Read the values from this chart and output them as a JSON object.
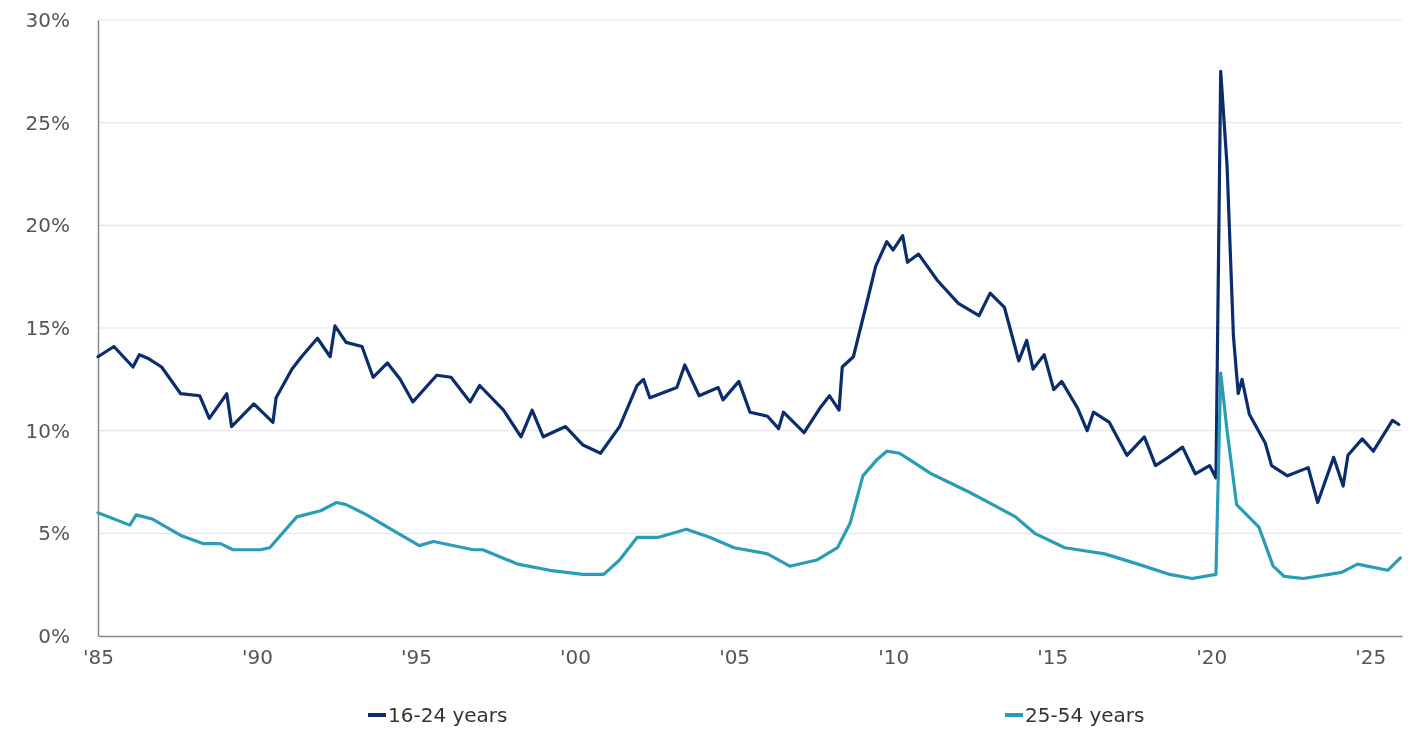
{
  "chart_data": {
    "type": "line",
    "xlim": [
      1985,
      2026
    ],
    "ylim": [
      0,
      30
    ],
    "xticks": [
      {
        "value": 1985,
        "label": "'85"
      },
      {
        "value": 1990,
        "label": "'90"
      },
      {
        "value": 1995,
        "label": "'95"
      },
      {
        "value": 2000,
        "label": "'00"
      },
      {
        "value": 2005,
        "label": "'05"
      },
      {
        "value": 2010,
        "label": "'10"
      },
      {
        "value": 2015,
        "label": "'15"
      },
      {
        "value": 2020,
        "label": "'20"
      },
      {
        "value": 2025,
        "label": "'25"
      }
    ],
    "yticks": [
      {
        "value": 0,
        "label": "0%"
      },
      {
        "value": 5,
        "label": "5%"
      },
      {
        "value": 10,
        "label": "10%"
      },
      {
        "value": 15,
        "label": "15%"
      },
      {
        "value": 20,
        "label": "20%"
      },
      {
        "value": 25,
        "label": "25%"
      },
      {
        "value": 30,
        "label": "30%"
      }
    ],
    "grid": "y",
    "legend": "bottom",
    "marker": "none",
    "line_style": "solid",
    "series": [
      {
        "name": "16-24 years",
        "color": "#0b2d6b",
        "x": [
          1985,
          1985.5,
          1986.1,
          1986.3,
          1986.6,
          1987,
          1987.6,
          1988.2,
          1988.5,
          1989.05,
          1989.2,
          1989.9,
          1990.5,
          1990.6,
          1991.1,
          1991.4,
          1991.9,
          1992.3,
          1992.45,
          1992.8,
          1993.3,
          1993.65,
          1994.1,
          1994.5,
          1994.9,
          1995.65,
          1996.1,
          1996.7,
          1997,
          1997.75,
          1998.3,
          1998.65,
          1999,
          1999.7,
          2000.25,
          2000.8,
          2001.4,
          2001.95,
          2002.15,
          2002.35,
          2003.2,
          2003.45,
          2003.9,
          2004.5,
          2004.65,
          2005.15,
          2005.5,
          2006.05,
          2006.4,
          2006.55,
          2007.2,
          2007.7,
          2008,
          2008.3,
          2008.4,
          2008.75,
          2009.2,
          2009.45,
          2009.8,
          2010,
          2010.3,
          2010.45,
          2010.8,
          2011.4,
          2012.05,
          2012.7,
          2013.05,
          2013.5,
          2013.95,
          2014.2,
          2014.4,
          2014.75,
          2015.05,
          2015.3,
          2015.8,
          2016.1,
          2016.3,
          2016.8,
          2017.35,
          2017.9,
          2018.25,
          2018.65,
          2019.1,
          2019.5,
          2019.95,
          2020.15,
          2020.3,
          2020.5,
          2020.7,
          2020.85,
          2020.97,
          2021.2,
          2021.7,
          2021.9,
          2022.4,
          2023.05,
          2023.35,
          2023.85,
          2024.15,
          2024.3,
          2024.75,
          2025.1,
          2025.7,
          2025.9
        ],
        "values": [
          13.6,
          14.1,
          13.1,
          13.7,
          13.5,
          13.1,
          11.8,
          11.7,
          10.6,
          11.8,
          10.2,
          11.3,
          10.4,
          11.6,
          13,
          13.6,
          14.5,
          13.6,
          15.1,
          14.3,
          14.1,
          12.6,
          13.3,
          12.5,
          11.4,
          12.7,
          12.6,
          11.4,
          12.2,
          11,
          9.7,
          11,
          9.7,
          10.2,
          9.3,
          8.9,
          10.2,
          12.2,
          12.5,
          11.6,
          12.1,
          13.2,
          11.7,
          12.1,
          11.5,
          12.4,
          10.9,
          10.7,
          10.1,
          10.9,
          9.9,
          11.1,
          11.7,
          11,
          13.1,
          13.6,
          16.4,
          18,
          19.2,
          18.8,
          19.5,
          18.2,
          18.6,
          17.3,
          16.2,
          15.6,
          16.7,
          16,
          13.4,
          14.4,
          13,
          13.7,
          12,
          12.4,
          11.1,
          10,
          10.9,
          10.4,
          8.8,
          9.7,
          8.3,
          8.7,
          9.2,
          7.9,
          8.3,
          7.7,
          27.5,
          22.9,
          14.6,
          11.8,
          12.5,
          10.8,
          9.4,
          8.3,
          7.8,
          8.2,
          6.5,
          8.7,
          7.3,
          8.8,
          9.6,
          9,
          10.5,
          10.3
        ]
      },
      {
        "name": "25-54 years",
        "color": "#2b9cb6",
        "x": [
          1985,
          1986,
          1986.2,
          1986.7,
          1987.6,
          1988.3,
          1988.85,
          1989.25,
          1990.1,
          1990.4,
          1991.25,
          1992,
          1992.5,
          1992.8,
          1993.45,
          1994.1,
          1995.1,
          1995.55,
          1996.8,
          1997.1,
          1998.2,
          1999.2,
          2000.25,
          2000.9,
          2001.4,
          2001.95,
          2002.6,
          2003.5,
          2004.25,
          2005,
          2006.05,
          2006.75,
          2007.6,
          2008.25,
          2008.65,
          2009.05,
          2009.5,
          2009.8,
          2010.2,
          2010.6,
          2011.2,
          2012.4,
          2013.25,
          2013.85,
          2014.45,
          2015.4,
          2016.65,
          2017.7,
          2018.7,
          2019.4,
          2020.15,
          2020.3,
          2020.5,
          2020.8,
          2021.5,
          2021.95,
          2022.3,
          2022.9,
          2024.1,
          2024.6,
          2025.55,
          2025.95
        ],
        "values": [
          6,
          5.4,
          5.9,
          5.7,
          4.9,
          4.5,
          4.5,
          4.2,
          4.2,
          4.3,
          5.8,
          6.1,
          6.5,
          6.4,
          5.9,
          5.3,
          4.4,
          4.6,
          4.2,
          4.2,
          3.5,
          3.2,
          3,
          3,
          3.7,
          4.8,
          4.8,
          5.2,
          4.8,
          4.3,
          4,
          3.4,
          3.7,
          4.3,
          5.5,
          7.8,
          8.6,
          9,
          8.9,
          8.5,
          7.9,
          7,
          6.3,
          5.8,
          5,
          4.3,
          4,
          3.5,
          3,
          2.8,
          3,
          12.8,
          10,
          6.4,
          5.3,
          3.4,
          2.9,
          2.8,
          3.1,
          3.5,
          3.2,
          3.8
        ]
      }
    ]
  }
}
